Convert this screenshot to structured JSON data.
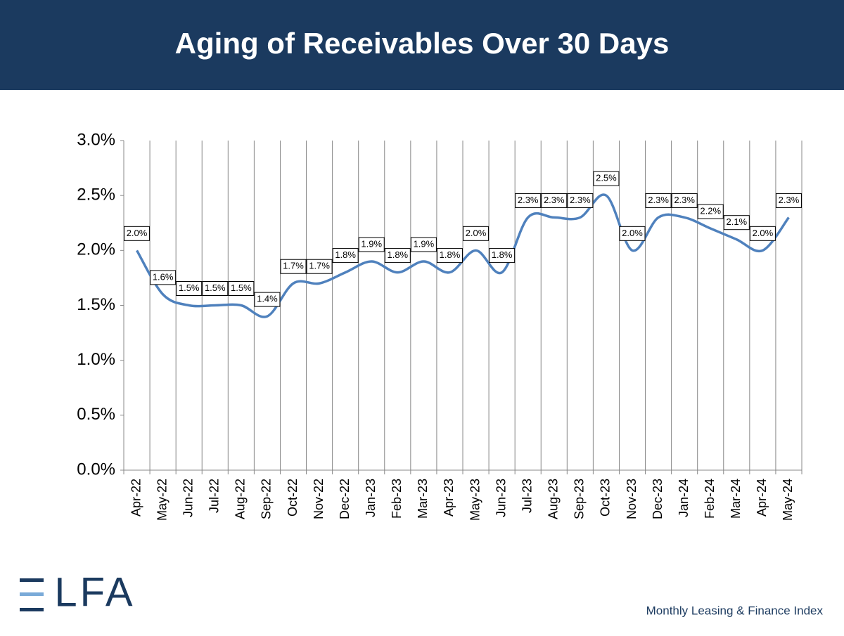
{
  "chart_data": {
    "type": "line",
    "title": "Aging of Receivables Over 30 Days",
    "categories": [
      "Apr-22",
      "May-22",
      "Jun-22",
      "Jul-22",
      "Aug-22",
      "Sep-22",
      "Oct-22",
      "Nov-22",
      "Dec-22",
      "Jan-23",
      "Feb-23",
      "Mar-23",
      "Apr-23",
      "May-23",
      "Jun-23",
      "Jul-23",
      "Aug-23",
      "Sep-23",
      "Oct-23",
      "Nov-23",
      "Dec-23",
      "Jan-24",
      "Feb-24",
      "Mar-24",
      "Apr-24",
      "May-24"
    ],
    "values": [
      2.0,
      1.6,
      1.5,
      1.5,
      1.5,
      1.4,
      1.7,
      1.7,
      1.8,
      1.9,
      1.8,
      1.9,
      1.8,
      2.0,
      1.8,
      2.3,
      2.3,
      2.3,
      2.5,
      2.0,
      2.3,
      2.3,
      2.2,
      2.1,
      2.0,
      2.3
    ],
    "value_labels": [
      "2.0%",
      "1.6%",
      "1.5%",
      "1.5%",
      "1.5%",
      "1.4%",
      "1.7%",
      "1.7%",
      "1.8%",
      "1.9%",
      "1.8%",
      "1.9%",
      "1.8%",
      "2.0%",
      "1.8%",
      "2.3%",
      "2.3%",
      "2.3%",
      "2.5%",
      "2.0%",
      "2.3%",
      "2.3%",
      "2.2%",
      "2.1%",
      "2.0%",
      "2.3%"
    ],
    "color": "#4f81bd",
    "ylim": [
      0,
      3
    ],
    "yticks": [
      {
        "value": 0,
        "label": "0.0%"
      },
      {
        "value": 0.5,
        "label": "0.5%"
      },
      {
        "value": 1,
        "label": "1.0%"
      },
      {
        "value": 1.5,
        "label": "1.5%"
      },
      {
        "value": 2,
        "label": "2.0%"
      },
      {
        "value": 2.5,
        "label": "2.5%"
      },
      {
        "value": 3,
        "label": "3.0%"
      }
    ],
    "smooth": true
  },
  "footer": {
    "logo": "ELFA",
    "tagline": "Monthly Leasing & Finance Index"
  }
}
